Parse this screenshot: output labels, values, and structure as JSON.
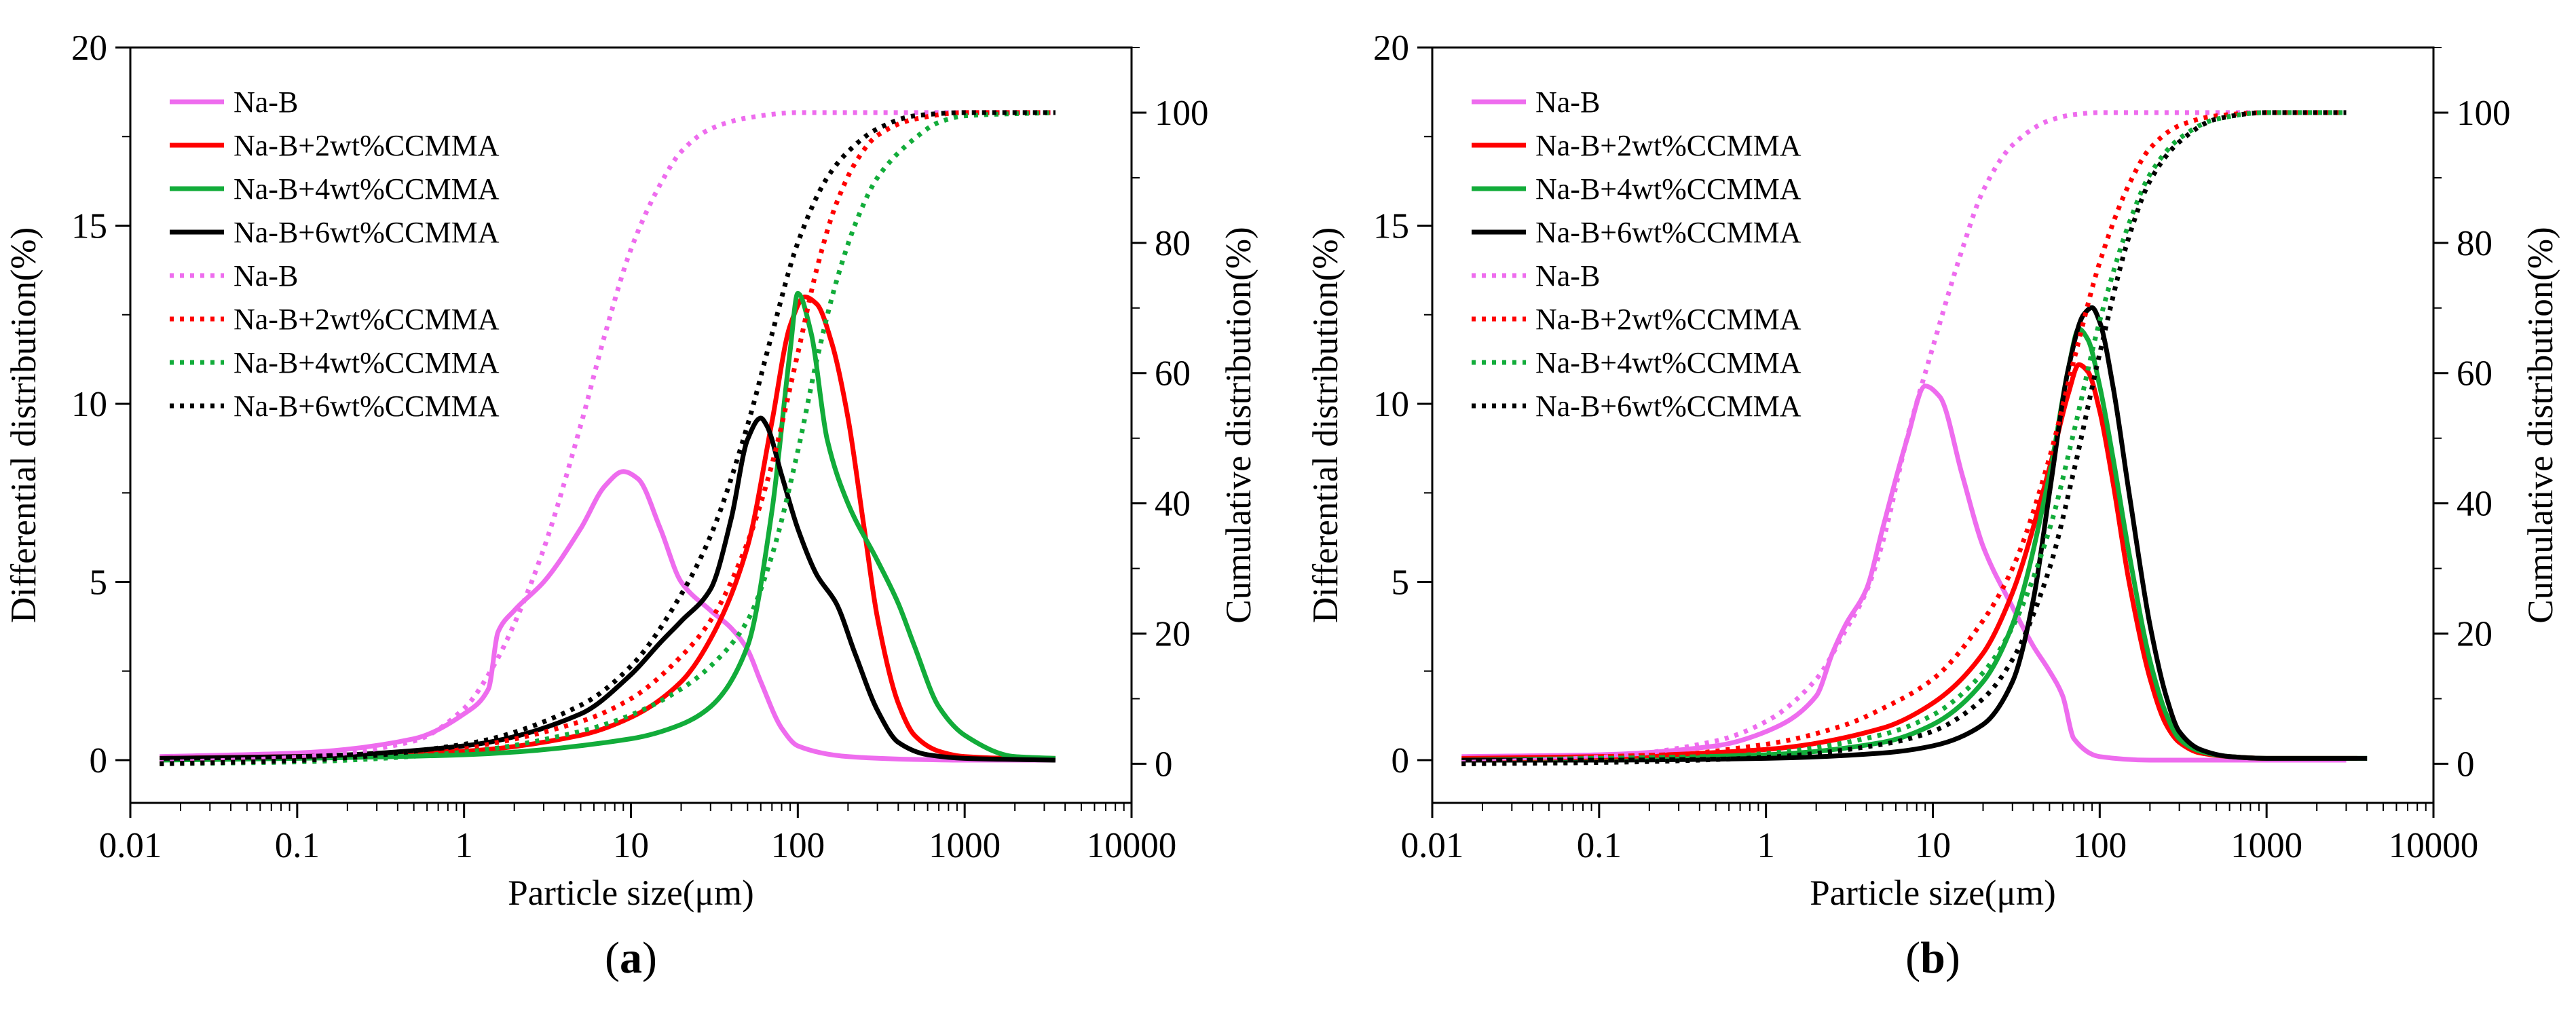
{
  "figure": {
    "panel_labels": [
      {
        "open": "(",
        "letter": "a",
        "close": ")"
      },
      {
        "open": "(",
        "letter": "b",
        "close": ")"
      }
    ]
  },
  "chart_data": [
    {
      "type": "line",
      "panel": "a",
      "title": "",
      "xlabel": "Particle size(μm)",
      "ylabel": "Differential distribution(%)",
      "y2label": "Cumulative distribution(%)",
      "xscale": "log",
      "xlim": [
        0.01,
        10000
      ],
      "ylim": [
        -1.2,
        20
      ],
      "y2lim": [
        -6,
        110
      ],
      "xticks": [
        0.01,
        0.1,
        1,
        10,
        100,
        1000,
        10000
      ],
      "xtick_labels": [
        "0.01",
        "0.1",
        "1",
        "10",
        "100",
        "1000",
        "10000"
      ],
      "yticks": [
        0,
        5,
        10,
        15,
        20
      ],
      "ytick_labels": [
        "0",
        "5",
        "10",
        "15",
        "20"
      ],
      "y2ticks": [
        0,
        20,
        40,
        60,
        80,
        100
      ],
      "y2tick_labels": [
        "0",
        "20",
        "40",
        "60",
        "80",
        "100"
      ],
      "legend_position": "top-left",
      "legend": [
        {
          "label": "Na-B",
          "color": "#ee6cee",
          "style": "solid"
        },
        {
          "label": "Na-B+2wt%CCMMA",
          "color": "#ff0000",
          "style": "solid"
        },
        {
          "label": "Na-B+4wt%CCMMA",
          "color": "#12ac3a",
          "style": "solid"
        },
        {
          "label": "Na-B+6wt%CCMMA",
          "color": "#000000",
          "style": "solid"
        },
        {
          "label": "Na-B",
          "color": "#ee6cee",
          "style": "dotted"
        },
        {
          "label": "Na-B+2wt%CCMMA",
          "color": "#ff0000",
          "style": "dotted"
        },
        {
          "label": "Na-B+4wt%CCMMA",
          "color": "#12ac3a",
          "style": "dotted"
        },
        {
          "label": "Na-B+6wt%CCMMA",
          "color": "#000000",
          "style": "dotted"
        }
      ],
      "series": [
        {
          "name": "Na-B",
          "axis": "left",
          "color": "#ee6cee",
          "style": "solid",
          "x": [
            0.015,
            0.1,
            0.5,
            1.0,
            1.4,
            1.6,
            2.0,
            3.0,
            5.0,
            7.0,
            9.0,
            11.0,
            15.0,
            20.0,
            30.0,
            40.0,
            50.0,
            60.0,
            80.0,
            100.0,
            200.0,
            500.0,
            1000.0,
            3500.0
          ],
          "y": [
            0.1,
            0.2,
            0.6,
            1.3,
            2.0,
            3.6,
            4.2,
            5.0,
            6.5,
            7.7,
            8.1,
            7.9,
            6.5,
            5.0,
            4.2,
            3.7,
            3.1,
            2.2,
            0.9,
            0.4,
            0.1,
            0.02,
            0.0,
            0.0
          ]
        },
        {
          "name": "Na-B+2wt%CCMMA",
          "axis": "left",
          "color": "#ff0000",
          "style": "solid",
          "x": [
            0.015,
            0.1,
            1.0,
            5.0,
            10.0,
            20.0,
            30.0,
            50.0,
            70.0,
            90.0,
            110.0,
            130.0,
            160.0,
            200.0,
            250.0,
            300.0,
            400.0,
            500.0,
            700.0,
            1000.0,
            2000.0,
            3500.0
          ],
          "y": [
            0.05,
            0.1,
            0.25,
            0.7,
            1.2,
            2.2,
            3.4,
            6.0,
            9.5,
            12.2,
            13.0,
            12.8,
            11.7,
            9.6,
            6.5,
            4.0,
            1.6,
            0.7,
            0.25,
            0.1,
            0.05,
            0.05
          ]
        },
        {
          "name": "Na-B+4wt%CCMMA",
          "axis": "left",
          "color": "#12ac3a",
          "style": "solid",
          "x": [
            0.015,
            0.1,
            1.0,
            10.0,
            20.0,
            30.0,
            50.0,
            70.0,
            90.0,
            100.0,
            120.0,
            150.0,
            200.0,
            300.0,
            400.0,
            500.0,
            700.0,
            1000.0,
            2000.0,
            3500.0
          ],
          "y": [
            0.0,
            0.05,
            0.15,
            0.6,
            1.0,
            1.5,
            3.2,
            7.0,
            11.5,
            13.1,
            12.0,
            9.0,
            7.2,
            5.6,
            4.4,
            3.2,
            1.5,
            0.7,
            0.1,
            0.05
          ]
        },
        {
          "name": "Na-B+6wt%CCMMA",
          "axis": "left",
          "color": "#000000",
          "style": "solid",
          "x": [
            0.015,
            0.1,
            1.0,
            5.0,
            10.0,
            15.0,
            20.0,
            30.0,
            40.0,
            50.0,
            60.0,
            65.0,
            80.0,
            100.0,
            130.0,
            170.0,
            220.0,
            300.0,
            400.0,
            600.0,
            1000.0,
            3500.0
          ],
          "y": [
            0.05,
            0.1,
            0.4,
            1.3,
            2.4,
            3.3,
            3.9,
            4.8,
            6.8,
            9.0,
            9.6,
            9.4,
            8.0,
            6.5,
            5.2,
            4.4,
            3.0,
            1.4,
            0.5,
            0.15,
            0.05,
            0.0
          ]
        },
        {
          "name": "Na-B",
          "axis": "right",
          "color": "#ee6cee",
          "style": "dotted",
          "x": [
            0.015,
            0.1,
            0.5,
            1.0,
            1.5,
            2.0,
            3.0,
            5.0,
            7.0,
            10.0,
            15.0,
            20.0,
            30.0,
            50.0,
            100.0,
            200.0,
            500.0,
            3500.0
          ],
          "y": [
            0.2,
            1.0,
            3.5,
            8.5,
            15.0,
            21.5,
            33.0,
            52.0,
            66.0,
            79.0,
            89.0,
            94.0,
            97.5,
            99.2,
            100.0,
            100.0,
            100.0,
            100.0
          ]
        },
        {
          "name": "Na-B+2wt%CCMMA",
          "axis": "right",
          "color": "#ff0000",
          "style": "dotted",
          "x": [
            0.015,
            0.1,
            1.0,
            5.0,
            10.0,
            20.0,
            30.0,
            50.0,
            70.0,
            100.0,
            130.0,
            170.0,
            230.0,
            300.0,
            500.0,
            1000.0,
            3500.0
          ],
          "y": [
            0.0,
            0.5,
            2.5,
            6.5,
            10.0,
            16.5,
            22.0,
            34.0,
            46.0,
            63.0,
            76.0,
            86.0,
            93.0,
            96.5,
            99.0,
            100.0,
            100.0
          ]
        },
        {
          "name": "Na-B+4wt%CCMMA",
          "axis": "right",
          "color": "#12ac3a",
          "style": "dotted",
          "x": [
            0.015,
            0.1,
            1.0,
            5.0,
            10.0,
            20.0,
            30.0,
            50.0,
            70.0,
            100.0,
            130.0,
            170.0,
            230.0,
            300.0,
            500.0,
            700.0,
            1000.0,
            3500.0
          ],
          "y": [
            0.0,
            0.3,
            1.8,
            5.0,
            7.5,
            11.5,
            15.0,
            22.0,
            32.0,
            48.0,
            62.0,
            74.0,
            84.0,
            90.0,
            96.0,
            98.5,
            99.5,
            100.0
          ]
        },
        {
          "name": "Na-B+6wt%CCMMA",
          "axis": "right",
          "color": "#000000",
          "style": "dotted",
          "x": [
            0.015,
            0.1,
            1.0,
            5.0,
            10.0,
            20.0,
            30.0,
            50.0,
            70.0,
            100.0,
            150.0,
            200.0,
            300.0,
            500.0,
            1000.0,
            3500.0
          ],
          "y": [
            0.0,
            0.5,
            3.0,
            9.0,
            15.0,
            26.0,
            35.0,
            52.0,
            66.0,
            80.0,
            90.0,
            94.0,
            97.5,
            99.5,
            100.0,
            100.0
          ]
        }
      ]
    },
    {
      "type": "line",
      "panel": "b",
      "title": "",
      "xlabel": "Particle size(μm)",
      "ylabel": "Differential distribution(%)",
      "y2label": "Cumulative distribution(%)",
      "xscale": "log",
      "xlim": [
        0.01,
        10000
      ],
      "ylim": [
        -1.2,
        20
      ],
      "y2lim": [
        -6,
        110
      ],
      "xticks": [
        0.01,
        0.1,
        1,
        10,
        100,
        1000,
        10000
      ],
      "xtick_labels": [
        "0.01",
        "0.1",
        "1",
        "10",
        "100",
        "1000",
        "10000"
      ],
      "yticks": [
        0,
        5,
        10,
        15,
        20
      ],
      "ytick_labels": [
        "0",
        "5",
        "10",
        "15",
        "20"
      ],
      "y2ticks": [
        0,
        20,
        40,
        60,
        80,
        100
      ],
      "y2tick_labels": [
        "0",
        "20",
        "40",
        "60",
        "80",
        "100"
      ],
      "legend_position": "top-left",
      "legend": [
        {
          "label": "Na-B",
          "color": "#ee6cee",
          "style": "solid"
        },
        {
          "label": "Na-B+2wt%CCMMA",
          "color": "#ff0000",
          "style": "solid"
        },
        {
          "label": "Na-B+4wt%CCMMA",
          "color": "#12ac3a",
          "style": "solid"
        },
        {
          "label": "Na-B+6wt%CCMMA",
          "color": "#000000",
          "style": "solid"
        },
        {
          "label": "Na-B",
          "color": "#ee6cee",
          "style": "dotted"
        },
        {
          "label": "Na-B+2wt%CCMMA",
          "color": "#ff0000",
          "style": "dotted"
        },
        {
          "label": "Na-B+4wt%CCMMA",
          "color": "#12ac3a",
          "style": "dotted"
        },
        {
          "label": "Na-B+6wt%CCMMA",
          "color": "#000000",
          "style": "dotted"
        }
      ],
      "series": [
        {
          "name": "Na-B",
          "axis": "left",
          "color": "#ee6cee",
          "style": "solid",
          "x": [
            0.015,
            0.1,
            0.5,
            1.0,
            2.0,
            2.5,
            3.0,
            4.0,
            5.0,
            7.0,
            9.0,
            11.0,
            15.0,
            20.0,
            30.0,
            40.0,
            50.0,
            60.0,
            70.0,
            100.0,
            200.0,
            500.0,
            1000.0,
            3000.0
          ],
          "y": [
            0.1,
            0.15,
            0.4,
            0.8,
            1.8,
            3.0,
            3.8,
            4.8,
            6.5,
            9.0,
            10.5,
            10.2,
            8.0,
            6.0,
            4.3,
            3.2,
            2.5,
            1.8,
            0.6,
            0.1,
            0.0,
            0.0,
            0.0,
            0.0
          ]
        },
        {
          "name": "Na-B+2wt%CCMMA",
          "axis": "left",
          "color": "#ff0000",
          "style": "solid",
          "x": [
            0.015,
            0.1,
            1.0,
            5.0,
            10.0,
            20.0,
            30.0,
            50.0,
            65.0,
            75.0,
            85.0,
            100.0,
            120.0,
            150.0,
            200.0,
            250.0,
            300.0,
            400.0,
            600.0,
            1000.0,
            3500.0
          ],
          "y": [
            0.05,
            0.1,
            0.3,
            0.9,
            1.6,
            3.0,
            4.7,
            8.2,
            10.3,
            11.1,
            10.9,
            9.8,
            7.8,
            5.0,
            2.3,
            1.0,
            0.5,
            0.2,
            0.1,
            0.05,
            0.05
          ]
        },
        {
          "name": "Na-B+4wt%CCMMA",
          "axis": "left",
          "color": "#12ac3a",
          "style": "solid",
          "x": [
            0.015,
            0.1,
            1.0,
            5.0,
            10.0,
            20.0,
            30.0,
            50.0,
            65.0,
            75.0,
            85.0,
            100.0,
            120.0,
            150.0,
            200.0,
            250.0,
            300.0,
            400.0,
            600.0,
            1000.0,
            4000.0
          ],
          "y": [
            0.0,
            0.05,
            0.15,
            0.5,
            1.0,
            2.2,
            3.8,
            8.0,
            11.0,
            12.1,
            11.8,
            10.5,
            8.5,
            5.8,
            2.8,
            1.3,
            0.6,
            0.25,
            0.1,
            0.05,
            0.05
          ]
        },
        {
          "name": "Na-B+6wt%CCMMA",
          "axis": "left",
          "color": "#000000",
          "style": "solid",
          "x": [
            0.015,
            0.1,
            1.0,
            5.0,
            10.0,
            20.0,
            30.0,
            40.0,
            50.0,
            65.0,
            80.0,
            90.0,
            100.0,
            120.0,
            150.0,
            200.0,
            250.0,
            300.0,
            400.0,
            600.0,
            1000.0,
            4000.0
          ],
          "y": [
            0.0,
            0.0,
            0.05,
            0.2,
            0.4,
            1.0,
            2.2,
            4.5,
            7.5,
            11.0,
            12.5,
            12.7,
            12.3,
            10.5,
            7.5,
            3.8,
            1.8,
            0.8,
            0.3,
            0.1,
            0.05,
            0.05
          ]
        },
        {
          "name": "Na-B",
          "axis": "right",
          "color": "#ee6cee",
          "style": "dotted",
          "x": [
            0.015,
            0.1,
            0.5,
            1.0,
            2.0,
            3.0,
            4.0,
            5.0,
            7.0,
            10.0,
            15.0,
            20.0,
            30.0,
            50.0,
            70.0,
            100.0,
            200.0,
            500.0,
            3000.0
          ],
          "y": [
            0.2,
            1.0,
            3.5,
            6.5,
            13.0,
            20.5,
            26.5,
            34.0,
            50.0,
            64.0,
            79.0,
            88.0,
            95.0,
            98.8,
            99.7,
            100.0,
            100.0,
            100.0,
            100.0
          ]
        },
        {
          "name": "Na-B+2wt%CCMMA",
          "axis": "right",
          "color": "#ff0000",
          "style": "dotted",
          "x": [
            0.015,
            0.1,
            1.0,
            3.0,
            5.0,
            10.0,
            20.0,
            30.0,
            50.0,
            70.0,
            100.0,
            150.0,
            200.0,
            300.0,
            500.0,
            1000.0,
            3000.0
          ],
          "y": [
            0.0,
            0.5,
            3.0,
            6.0,
            8.5,
            13.0,
            22.0,
            30.0,
            47.0,
            62.0,
            77.0,
            89.0,
            94.5,
            98.0,
            99.5,
            100.0,
            100.0
          ]
        },
        {
          "name": "Na-B+4wt%CCMMA",
          "axis": "right",
          "color": "#12ac3a",
          "style": "dotted",
          "x": [
            0.015,
            0.1,
            1.0,
            5.0,
            10.0,
            20.0,
            30.0,
            50.0,
            70.0,
            100.0,
            150.0,
            200.0,
            300.0,
            500.0,
            1000.0,
            3000.0
          ],
          "y": [
            0.0,
            0.3,
            1.6,
            4.5,
            7.5,
            14.0,
            21.0,
            36.0,
            51.0,
            68.0,
            83.0,
            90.5,
            96.0,
            99.0,
            100.0,
            100.0
          ]
        },
        {
          "name": "Na-B+6wt%CCMMA",
          "axis": "right",
          "color": "#000000",
          "style": "dotted",
          "x": [
            0.015,
            0.1,
            1.0,
            5.0,
            10.0,
            20.0,
            30.0,
            50.0,
            70.0,
            100.0,
            150.0,
            200.0,
            300.0,
            500.0,
            1000.0,
            3000.0
          ],
          "y": [
            0.0,
            0.2,
            1.0,
            3.0,
            5.0,
            10.0,
            16.0,
            30.0,
            45.0,
            63.0,
            81.0,
            89.5,
            95.5,
            99.0,
            100.0,
            100.0
          ]
        }
      ]
    }
  ]
}
